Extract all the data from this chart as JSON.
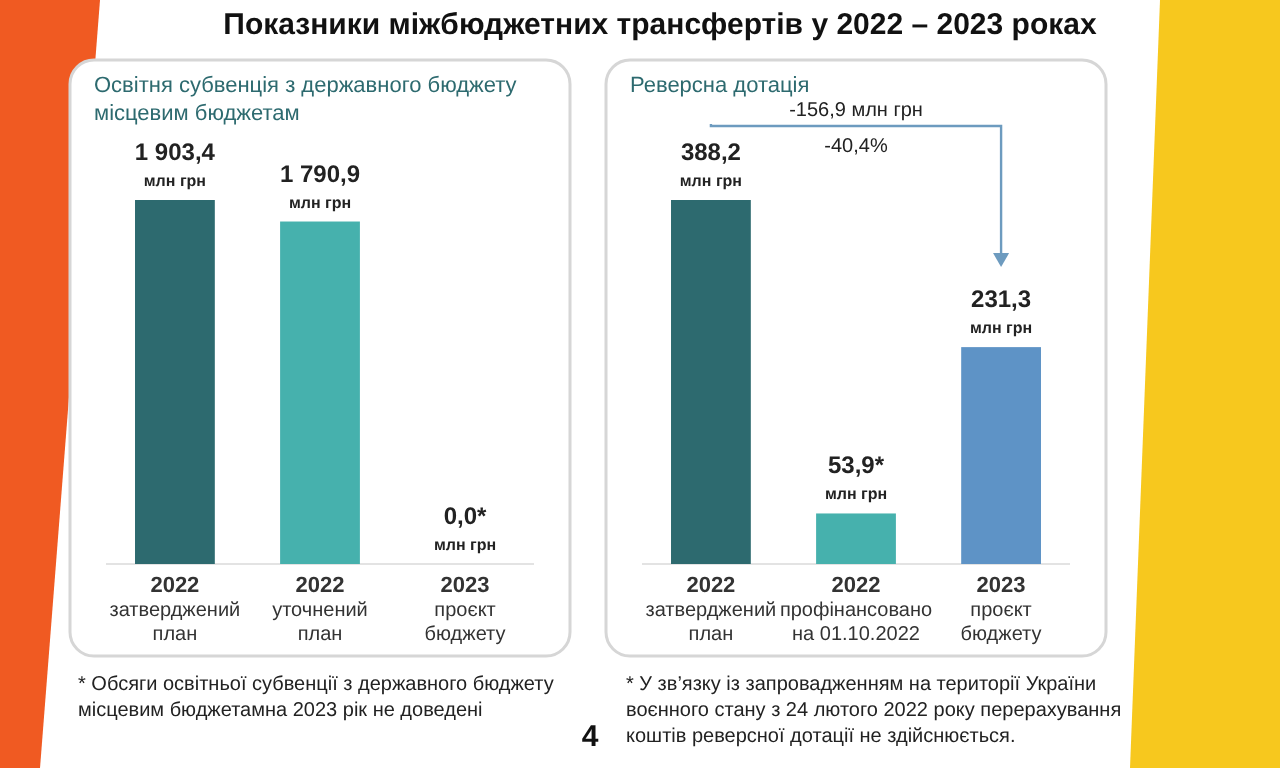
{
  "chart_data": [
    {
      "type": "bar",
      "title": "Освітня субвенція з державного бюджету\nмісцевим бюджетам",
      "categories": [
        "2022\nзатверджений\nплан",
        "2022\nуточнений\nплан",
        "2023\nпроєкт\nбюджету"
      ],
      "values": [
        1903.4,
        1790.9,
        0
      ],
      "colors": [
        "#2d6a6f",
        "#46b1ad",
        "#c0282d"
      ],
      "value_labels": [
        "1 903,4\nмлн грн",
        "1 790,9\nмлн грн",
        "0,0*\nмлн грн"
      ],
      "annotations": [
        "Показники міжбюджетних трансфертів у 2022 – 2023 роках",
        "* Обсяги освітньої субвенції з державного бюджету\nмісцевим бюджетамна 2023 рік не доведені"
      ]
    },
    {
      "type": "bar",
      "title": "Реверсна дотація",
      "categories": [
        "2022\nзатверджений\nплан",
        "2022\nпрофінансовано\nна 01.10.2022",
        "2023\nпроєкт\nбюджету"
      ],
      "values": [
        388.2,
        53.9,
        231.3
      ],
      "colors": [
        "#2d6a6f",
        "#46b1ad",
        "#5e93c6"
      ],
      "value_labels": [
        "388,2\nмлн грн",
        "53,9*\nмлн грн",
        "231,3\nмлн грн"
      ],
      "annotations": [
        "-156,9 млн грн",
        "-40,4%",
        "* У зв’язку із запровадженням на території України\nвоєнного стану з 24 лютого 2022 року перерахування\nкоштів реверсної дотації не здійснюється.",
        "4"
      ]
    }
  ]
}
